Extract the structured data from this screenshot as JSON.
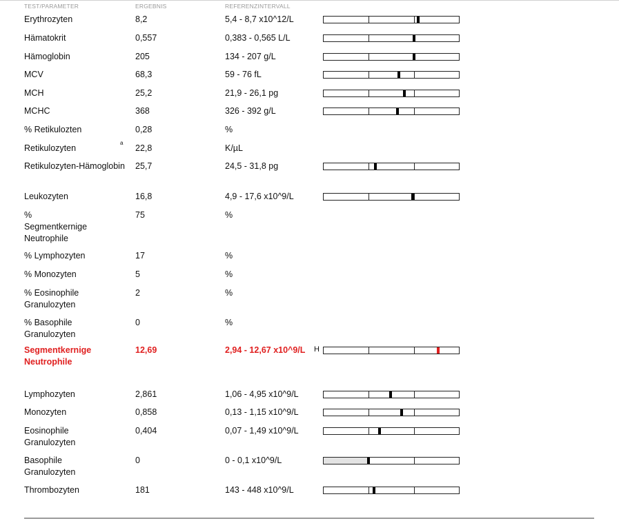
{
  "header": {
    "col_test": "TEST/PARAMETER",
    "col_result": "ERGEBNIS",
    "col_ref": "REFERENZINTERVALL"
  },
  "colors": {
    "abnormal": "#e02020",
    "marker": "#000000",
    "range_fill": "#e3e3e3"
  },
  "rows": [
    {
      "name": "Erythrozyten",
      "value": "8,2",
      "ref": "5,4 - 8,7 x10^12/L",
      "bar": true,
      "marker": 0.69
    },
    {
      "name": "Hämatokrit",
      "value": "0,557",
      "ref": "0,383 - 0,565 L/L",
      "bar": true,
      "marker": 0.66
    },
    {
      "name": "Hämoglobin",
      "value": "205",
      "ref": "134 - 207 g/L",
      "bar": true,
      "marker": 0.66
    },
    {
      "name": "MCV",
      "value": "68,3",
      "ref": "59 - 76 fL",
      "bar": true,
      "marker": 0.55
    },
    {
      "name": "MCH",
      "value": "25,2",
      "ref": "21,9 - 26,1 pg",
      "bar": true,
      "marker": 0.59
    },
    {
      "name": "MCHC",
      "value": "368",
      "ref": "326 - 392 g/L",
      "bar": true,
      "marker": 0.54
    },
    {
      "name": "% Retikulozten",
      "value": "0,28",
      "ref": "%",
      "bar": false
    },
    {
      "name": "Retikulozyten",
      "sup": "a",
      "value": "22,8",
      "ref": "K/µL",
      "bar": false
    },
    {
      "name": "Retikulozyten-Hämoglobin",
      "value": "25,7",
      "ref": "24,5 - 31,8 pg",
      "bar": true,
      "marker": 0.38
    },
    {
      "name": "Leukozyten",
      "value": "16,8",
      "ref": "4,9 - 17,6 x10^9/L",
      "bar": true,
      "marker": 0.65
    },
    {
      "name_lines": [
        "%",
        "Segmentkernige",
        "Neutrophile"
      ],
      "value": "75",
      "ref": "%",
      "bar": false
    },
    {
      "name": "% Lymphozyten",
      "value": "17",
      "ref": "%",
      "bar": false
    },
    {
      "name": "% Monozyten",
      "value": "5",
      "ref": "%",
      "bar": false
    },
    {
      "name_lines": [
        "% Eosinophile",
        "Granulozyten"
      ],
      "value": "2",
      "ref": "%",
      "bar": false
    },
    {
      "name_lines": [
        "% Basophile",
        "Granulozyten"
      ],
      "value": "0",
      "ref": "%",
      "bar": false
    },
    {
      "name_lines": [
        "Segmentkernige",
        "Neutrophile"
      ],
      "value": "12,69",
      "ref": "2,94 - 12,67 x10^9/L",
      "flag": "H",
      "high": true,
      "bar": true,
      "marker": 0.84
    },
    {
      "name": "Lymphozyten",
      "value": "2,861",
      "ref": "1,06 - 4,95 x10^9/L",
      "bar": true,
      "marker": 0.49
    },
    {
      "name": "Monozyten",
      "value": "0,858",
      "ref": "0,13 - 1,15 x10^9/L",
      "bar": true,
      "marker": 0.57
    },
    {
      "name_lines": [
        "Eosinophile",
        "Granulozyten"
      ],
      "value": "0,404",
      "ref": "0,07 - 1,49 x10^9/L",
      "bar": true,
      "marker": 0.41
    },
    {
      "name_lines": [
        "Basophile",
        "Granulozyten"
      ],
      "value": "0",
      "ref": "0 - 0,1 x10^9/L",
      "bar": true,
      "marker": 0.33,
      "shaded": 0.33
    },
    {
      "name": "Thrombozyten",
      "value": "181",
      "ref": "143 - 448 x10^9/L",
      "bar": true,
      "marker": 0.37
    }
  ]
}
